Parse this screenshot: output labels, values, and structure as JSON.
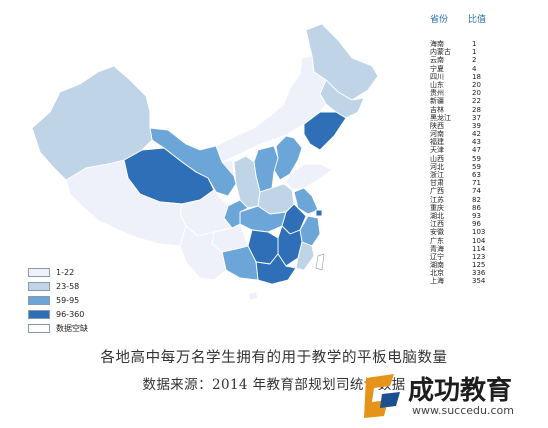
{
  "map": {
    "legend": [
      {
        "label": "1-22",
        "color": "#eef1fa"
      },
      {
        "label": "23-58",
        "color": "#bfd4e6"
      },
      {
        "label": "59-95",
        "color": "#6ca6d9"
      },
      {
        "label": "96-360",
        "color": "#2e6fb7"
      },
      {
        "label": "数据空缺",
        "color": "#ffffff"
      }
    ],
    "table": {
      "header_province": "省份",
      "header_value": "比值",
      "rows": [
        {
          "province": "海南",
          "value": "1"
        },
        {
          "province": "内蒙古",
          "value": "1"
        },
        {
          "province": "云南",
          "value": "2"
        },
        {
          "province": "宁夏",
          "value": "4"
        },
        {
          "province": "四川",
          "value": "18"
        },
        {
          "province": "山东",
          "value": "20"
        },
        {
          "province": "贵州",
          "value": "20"
        },
        {
          "province": "新疆",
          "value": "22"
        },
        {
          "province": "吉林",
          "value": "28"
        },
        {
          "province": "黑龙江",
          "value": "37"
        },
        {
          "province": "陕西",
          "value": "39"
        },
        {
          "province": "河南",
          "value": "42"
        },
        {
          "province": "福建",
          "value": "43"
        },
        {
          "province": "天津",
          "value": "47"
        },
        {
          "province": "山西",
          "value": "59"
        },
        {
          "province": "河北",
          "value": "59"
        },
        {
          "province": "浙江",
          "value": "63"
        },
        {
          "province": "甘肃",
          "value": "71"
        },
        {
          "province": "广西",
          "value": "74"
        },
        {
          "province": "江苏",
          "value": "82"
        },
        {
          "province": "重庆",
          "value": "86"
        },
        {
          "province": "湖北",
          "value": "93"
        },
        {
          "province": "江西",
          "value": "96"
        },
        {
          "province": "安徽",
          "value": "103"
        },
        {
          "province": "广东",
          "value": "104"
        },
        {
          "province": "青海",
          "value": "114"
        },
        {
          "province": "辽宁",
          "value": "123"
        },
        {
          "province": "湖南",
          "value": "125"
        },
        {
          "province": "北京",
          "value": "336"
        },
        {
          "province": "上海",
          "value": "354"
        }
      ]
    }
  },
  "caption": {
    "line1": "各地高中每万名学生拥有的用于教学的平板电脑数量",
    "line2": "数据来源：2014 年教育部规划司统计数据"
  },
  "watermark": {
    "text": "成功教育",
    "url": "www.succedu.com"
  }
}
